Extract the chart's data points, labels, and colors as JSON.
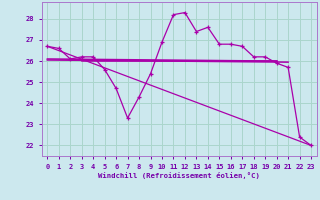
{
  "xlabel": "Windchill (Refroidissement éolien,°C)",
  "bg_color": "#cce8ee",
  "grid_color": "#aad5cc",
  "line_color": "#aa00aa",
  "x_ticks": [
    0,
    1,
    2,
    3,
    4,
    5,
    6,
    7,
    8,
    9,
    10,
    11,
    12,
    13,
    14,
    15,
    16,
    17,
    18,
    19,
    20,
    21,
    22,
    23
  ],
  "y_ticks": [
    22,
    23,
    24,
    25,
    26,
    27,
    28
  ],
  "ylim": [
    21.5,
    28.8
  ],
  "xlim": [
    -0.5,
    23.5
  ],
  "curve1_x": [
    0,
    1,
    2,
    3,
    4,
    5,
    6,
    7,
    8,
    9,
    10,
    11,
    12,
    13,
    14,
    15,
    16,
    17,
    18,
    19,
    20,
    21,
    22,
    23
  ],
  "curve1_y": [
    26.7,
    26.6,
    26.1,
    26.2,
    26.2,
    25.6,
    24.7,
    23.3,
    24.3,
    25.4,
    26.9,
    28.2,
    28.3,
    27.4,
    27.6,
    26.8,
    26.8,
    26.7,
    26.2,
    26.2,
    25.9,
    25.7,
    22.4,
    22.0
  ],
  "diag_line": {
    "x": [
      0,
      23
    ],
    "y": [
      26.7,
      22.0
    ]
  },
  "flat_line1": {
    "x": [
      0,
      20
    ],
    "y": [
      26.1,
      26.0
    ]
  },
  "flat_line2": {
    "x": [
      0,
      21
    ],
    "y": [
      26.05,
      25.95
    ]
  },
  "flat_line3": {
    "x": [
      3,
      20
    ],
    "y": [
      26.0,
      26.0
    ]
  }
}
